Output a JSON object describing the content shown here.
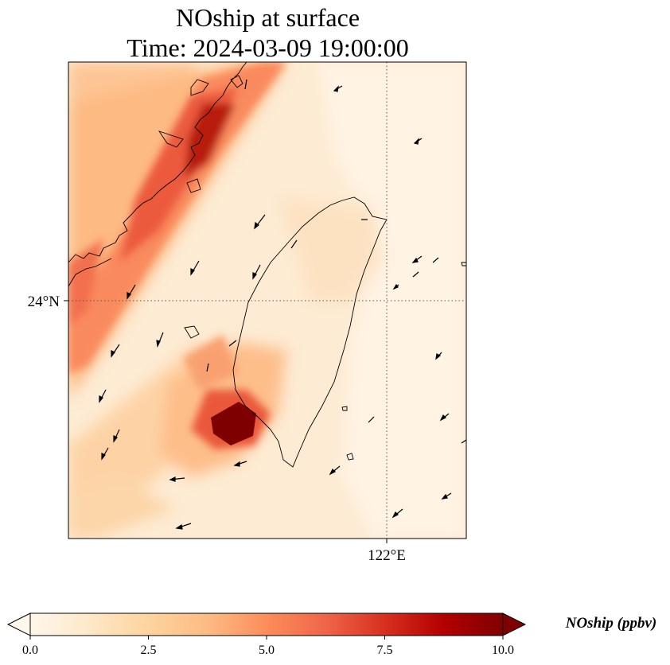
{
  "title": {
    "line1": "NOship at surface",
    "line2": "Time: 2024-03-09 19:00:00"
  },
  "map": {
    "lat_label": "24°N",
    "lon_label": "122°E",
    "gridlines": "dotted",
    "coastline": "Taiwan and southeast China coast"
  },
  "colorbar": {
    "title": "NOship (ppbv)",
    "tick_labels": [
      "0.0",
      "2.5",
      "5.0",
      "7.5",
      "10.0"
    ],
    "min": 0,
    "max": 10,
    "extend": "both",
    "colormap": "OrRd",
    "colors": [
      "#fff7ec",
      "#fee8c8",
      "#fdd49e",
      "#fdbb84",
      "#fc8d59",
      "#ef6548",
      "#d7301f",
      "#b30000",
      "#7f0000"
    ]
  }
}
